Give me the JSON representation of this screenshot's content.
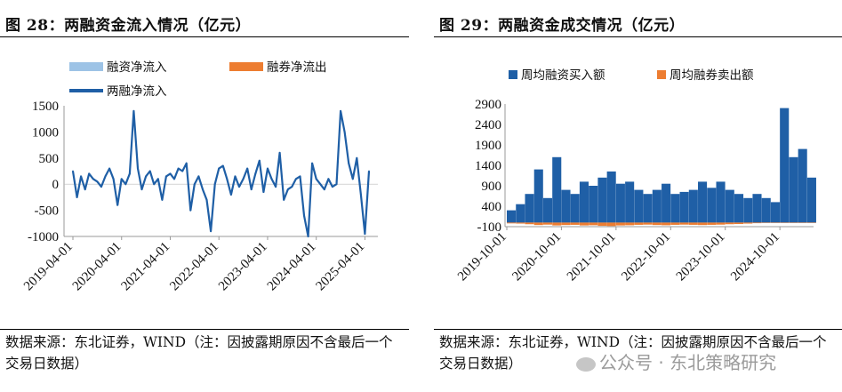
{
  "left": {
    "title": "图  28：两融资金流入情况（亿元）",
    "source": "数据来源：东北证券，WIND（注：因披露期原因不含最后一个交易日数据）",
    "chart_data": {
      "type": "line",
      "legend": [
        "融资净流入",
        "融券净流出",
        "两融净流入"
      ],
      "colors": {
        "financing": "#9dc3e6",
        "short": "#ed7d31",
        "total": "#1f5fa6"
      },
      "ylim": [
        -1000,
        1500
      ],
      "yticks": [
        -1000,
        -500,
        0,
        500,
        1000,
        1500
      ],
      "xticks": [
        "2019-04-01",
        "2020-04-01",
        "2021-04-01",
        "2022-04-01",
        "2023-04-01",
        "2024-04-01",
        "2025-04-01"
      ],
      "series": [
        {
          "name": "两融净流入",
          "x": [
            "2019-04",
            "2019-05",
            "2019-06",
            "2019-07",
            "2019-08",
            "2019-09",
            "2019-10",
            "2019-11",
            "2019-12",
            "2020-01",
            "2020-02",
            "2020-03",
            "2020-04",
            "2020-05",
            "2020-06",
            "2020-07",
            "2020-08",
            "2020-09",
            "2020-10",
            "2020-11",
            "2020-12",
            "2021-01",
            "2021-02",
            "2021-03",
            "2021-04",
            "2021-05",
            "2021-06",
            "2021-07",
            "2021-08",
            "2021-09",
            "2021-10",
            "2021-11",
            "2021-12",
            "2022-01",
            "2022-02",
            "2022-03",
            "2022-04",
            "2022-05",
            "2022-06",
            "2022-07",
            "2022-08",
            "2022-09",
            "2022-10",
            "2022-11",
            "2022-12",
            "2023-01",
            "2023-02",
            "2023-03",
            "2023-04",
            "2023-05",
            "2023-06",
            "2023-07",
            "2023-08",
            "2023-09",
            "2023-10",
            "2023-11",
            "2023-12",
            "2024-01",
            "2024-02",
            "2024-03",
            "2024-04",
            "2024-05",
            "2024-06",
            "2024-07",
            "2024-08",
            "2024-09",
            "2024-10",
            "2024-11",
            "2024-12",
            "2025-01",
            "2025-02",
            "2025-03",
            "2025-04",
            "2025-05"
          ],
          "values": [
            250,
            -250,
            150,
            -100,
            200,
            100,
            50,
            -50,
            150,
            300,
            100,
            -400,
            100,
            0,
            200,
            1400,
            300,
            -100,
            150,
            250,
            0,
            100,
            -300,
            150,
            200,
            100,
            300,
            250,
            400,
            -500,
            0,
            150,
            -100,
            -300,
            -900,
            0,
            300,
            350,
            100,
            -200,
            150,
            -50,
            100,
            300,
            -100,
            200,
            450,
            -150,
            300,
            100,
            -50,
            600,
            -300,
            -100,
            -50,
            100,
            150,
            -600,
            -1000,
            400,
            100,
            0,
            -100,
            100,
            -50,
            0,
            1400,
            1000,
            400,
            100,
            500,
            -200,
            -950,
            250
          ]
        }
      ]
    }
  },
  "right": {
    "title": "图  29：两融资金成交情况（亿元）",
    "source": "数据来源：东北证券，WIND（注：因披露期原因不含最后一个交易日数据）",
    "chart_data": {
      "type": "bar",
      "legend": [
        "周均融资买入额",
        "周均融券卖出额"
      ],
      "colors": {
        "buy": "#1f5fa6",
        "sell": "#ed7d31"
      },
      "ylim": [
        -100,
        2900
      ],
      "yticks": [
        -100,
        400,
        900,
        1400,
        1900,
        2400,
        2900
      ],
      "xticks": [
        "2019-10-01",
        "2020-10-01",
        "2021-10-01",
        "2022-10-01",
        "2023-10-01",
        "2024-10-01"
      ],
      "x": [
        "2019-10",
        "2019-12",
        "2020-02",
        "2020-04",
        "2020-06",
        "2020-08",
        "2020-10",
        "2020-12",
        "2021-02",
        "2021-04",
        "2021-06",
        "2021-08",
        "2021-10",
        "2021-12",
        "2022-02",
        "2022-04",
        "2022-06",
        "2022-08",
        "2022-10",
        "2022-12",
        "2023-02",
        "2023-04",
        "2023-06",
        "2023-08",
        "2023-10",
        "2023-12",
        "2024-02",
        "2024-04",
        "2024-06",
        "2024-08",
        "2024-10",
        "2024-12",
        "2025-02",
        "2025-04"
      ],
      "series": [
        {
          "name": "周均融资买入额",
          "values": [
            300,
            450,
            700,
            1300,
            600,
            1600,
            800,
            700,
            1000,
            900,
            1100,
            1250,
            950,
            1000,
            800,
            700,
            800,
            950,
            700,
            750,
            800,
            1000,
            850,
            1000,
            800,
            700,
            600,
            700,
            600,
            500,
            2800,
            1600,
            1800,
            1100
          ]
        },
        {
          "name": "周均融券卖出额",
          "values": [
            -20,
            -25,
            -40,
            -60,
            -50,
            -70,
            -60,
            -55,
            -70,
            -65,
            -80,
            -85,
            -70,
            -65,
            -55,
            -50,
            -60,
            -65,
            -55,
            -50,
            -55,
            -60,
            -55,
            -50,
            -40,
            -35,
            -25,
            -15,
            -10,
            -10,
            -10,
            -10,
            -10,
            -10
          ]
        }
      ]
    }
  },
  "watermark": "公众号 · 东北策略研究"
}
